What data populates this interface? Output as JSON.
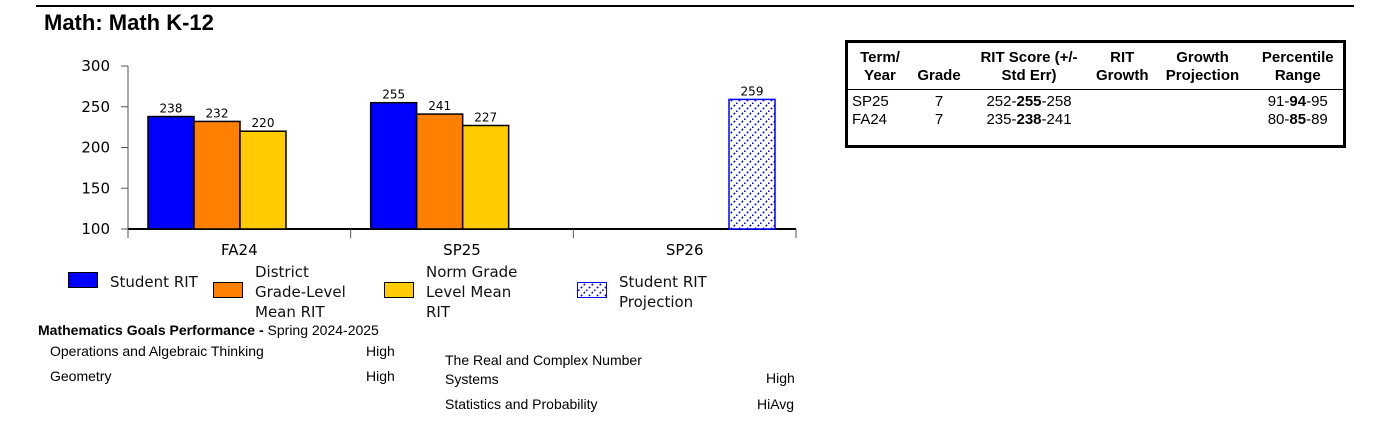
{
  "page": {
    "title": "Math: Math K-12"
  },
  "chart_data": {
    "type": "bar",
    "categories": [
      "FA24",
      "SP25",
      "SP26"
    ],
    "ylim": [
      100,
      300
    ],
    "yticks": [
      100,
      150,
      200,
      250,
      300
    ],
    "series": [
      {
        "name": "Student RIT",
        "color": "#0000ff",
        "values": [
          238,
          255,
          null
        ]
      },
      {
        "name": "District Grade-Level Mean RIT",
        "color": "#ff8000",
        "values": [
          232,
          241,
          null
        ]
      },
      {
        "name": "Norm Grade Level Mean RIT",
        "color": "#ffcc00",
        "values": [
          220,
          227,
          null
        ]
      },
      {
        "name": "Student RIT Projection",
        "color": "#0000ff",
        "pattern": "hatched",
        "values": [
          null,
          null,
          259
        ]
      }
    ],
    "legend": {
      "position": "bottom",
      "items": [
        {
          "label": "Student RIT",
          "color": "#0000ff"
        },
        {
          "label": "District Grade-Level Mean RIT",
          "color": "#ff8000"
        },
        {
          "label": "Norm Grade Level Mean RIT",
          "color": "#ffcc00"
        },
        {
          "label": "Student RIT Projection",
          "color": "#0000ff",
          "pattern": "hatched"
        }
      ]
    }
  },
  "rit_table": {
    "headers": [
      "Term/ Year",
      "Grade",
      "RIT Score (+/- Std Err)",
      "RIT Growth",
      "Growth Projection",
      "Percentile Range"
    ],
    "rows": [
      {
        "term": "SP25",
        "grade": "7",
        "rit_low": "252-",
        "rit_mid": "255",
        "rit_high": "-258",
        "rit_growth": "",
        "growth_projection": "",
        "pct_low": "91-",
        "pct_mid": "94",
        "pct_high": "-95"
      },
      {
        "term": "FA24",
        "grade": "7",
        "rit_low": "235-",
        "rit_mid": "238",
        "rit_high": "-241",
        "rit_growth": "",
        "growth_projection": "",
        "pct_low": "80-",
        "pct_mid": "85",
        "pct_high": "-89"
      }
    ]
  },
  "goals": {
    "heading_bold": "Mathematics Goals Performance - ",
    "heading_rest": "Spring 2024-2025",
    "items": [
      {
        "name": "Operations and Algebraic Thinking",
        "level": "High"
      },
      {
        "name": "Geometry",
        "level": "High"
      },
      {
        "name": "The Real and Complex Number Systems",
        "level": "High"
      },
      {
        "name": "Statistics and Probability",
        "level": "HiAvg"
      }
    ]
  }
}
